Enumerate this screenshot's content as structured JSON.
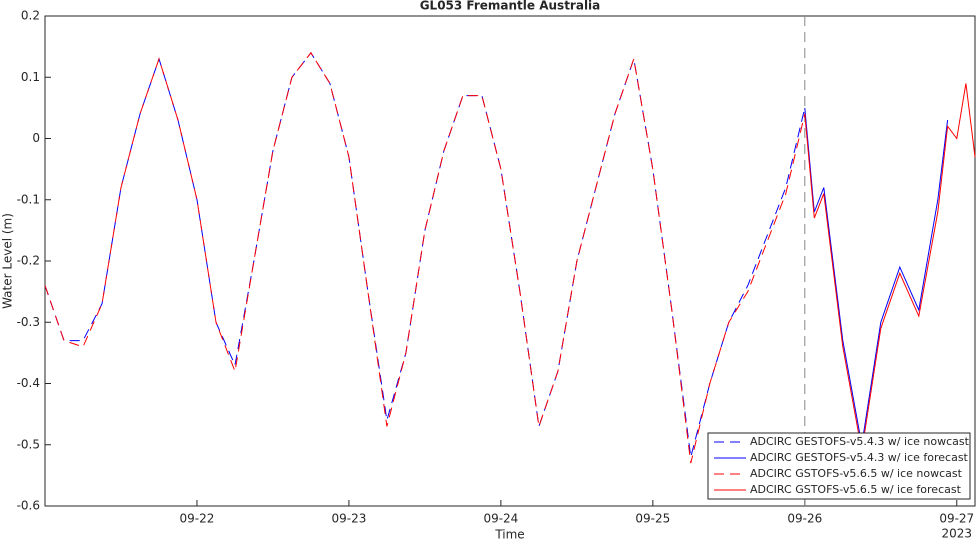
{
  "chart_data": {
    "type": "line",
    "title": "GL053 Fremantle Australia",
    "xlabel": "Time",
    "ylabel": "Water Level (m)",
    "x_year_label": "2023",
    "xlim": [
      0,
      6.12
    ],
    "ylim": [
      -0.6,
      0.2
    ],
    "xticks": [
      {
        "value": 1,
        "label": "09-22"
      },
      {
        "value": 2,
        "label": "09-23"
      },
      {
        "value": 3,
        "label": "09-24"
      },
      {
        "value": 4,
        "label": "09-25"
      },
      {
        "value": 5,
        "label": "09-26"
      },
      {
        "value": 6,
        "label": "09-27"
      }
    ],
    "yticks": [
      -0.6,
      -0.5,
      -0.4,
      -0.3,
      -0.2,
      -0.1,
      0,
      0.1,
      0.2
    ],
    "grid": false,
    "vline_x": 5,
    "legend_position": "lower right",
    "series": [
      {
        "name": "ADCIRC GESTOFS-v5.4.3 w/ ice nowcast",
        "color": "#0000ff",
        "dashed": true,
        "x": [
          0,
          0.125,
          0.25,
          0.375,
          0.5,
          0.625,
          0.75,
          0.875,
          1,
          1.125,
          1.25,
          1.375,
          1.5,
          1.625,
          1.75,
          1.875,
          2,
          2.125,
          2.25,
          2.375,
          2.5,
          2.625,
          2.75,
          2.875,
          3,
          3.125,
          3.25,
          3.375,
          3.5,
          3.625,
          3.75,
          3.875,
          4,
          4.125,
          4.25,
          4.375,
          4.5,
          4.625,
          4.75,
          4.875,
          5
        ],
        "values": [
          -0.24,
          -0.33,
          -0.33,
          -0.27,
          -0.08,
          0.04,
          0.13,
          0.03,
          -0.1,
          -0.3,
          -0.37,
          -0.2,
          -0.02,
          0.1,
          0.14,
          0.09,
          -0.03,
          -0.25,
          -0.46,
          -0.35,
          -0.15,
          -0.02,
          0.07,
          0.07,
          -0.05,
          -0.25,
          -0.47,
          -0.38,
          -0.2,
          -0.08,
          0.04,
          0.13,
          -0.05,
          -0.28,
          -0.52,
          -0.4,
          -0.3,
          -0.24,
          -0.16,
          -0.08,
          0.05
        ]
      },
      {
        "name": "ADCIRC GESTOFS-v5.4.3 w/ ice forecast",
        "color": "#0000ff",
        "dashed": false,
        "x": [
          5,
          5.0625,
          5.125,
          5.25,
          5.375,
          5.5,
          5.625,
          5.75,
          5.875,
          5.94
        ],
        "values": [
          0.05,
          -0.12,
          -0.08,
          -0.33,
          -0.5,
          -0.3,
          -0.21,
          -0.28,
          -0.1,
          0.03
        ]
      },
      {
        "name": "ADCIRC GSTOFS-v5.6.5 w/ ice nowcast",
        "color": "#ff0000",
        "dashed": true,
        "x": [
          0,
          0.125,
          0.25,
          0.375,
          0.5,
          0.625,
          0.75,
          0.875,
          1,
          1.125,
          1.25,
          1.375,
          1.5,
          1.625,
          1.75,
          1.875,
          2,
          2.125,
          2.25,
          2.375,
          2.5,
          2.625,
          2.75,
          2.875,
          3,
          3.125,
          3.25,
          3.375,
          3.5,
          3.625,
          3.75,
          3.875,
          4,
          4.125,
          4.25,
          4.375,
          4.5,
          4.625,
          4.75,
          4.875,
          5
        ],
        "values": [
          -0.24,
          -0.33,
          -0.34,
          -0.27,
          -0.08,
          0.04,
          0.13,
          0.03,
          -0.1,
          -0.3,
          -0.38,
          -0.2,
          -0.02,
          0.1,
          0.14,
          0.09,
          -0.03,
          -0.25,
          -0.47,
          -0.35,
          -0.15,
          -0.02,
          0.07,
          0.07,
          -0.05,
          -0.25,
          -0.47,
          -0.38,
          -0.2,
          -0.08,
          0.04,
          0.13,
          -0.05,
          -0.28,
          -0.53,
          -0.4,
          -0.3,
          -0.25,
          -0.17,
          -0.09,
          0.04
        ]
      },
      {
        "name": "ADCIRC GSTOFS-v5.6.5 w/ ice forecast",
        "color": "#ff0000",
        "dashed": false,
        "x": [
          5,
          5.0625,
          5.125,
          5.25,
          5.375,
          5.5,
          5.625,
          5.75,
          5.875,
          5.94,
          6,
          6.06,
          6.12
        ],
        "values": [
          0.04,
          -0.13,
          -0.09,
          -0.34,
          -0.51,
          -0.31,
          -0.22,
          -0.29,
          -0.12,
          0.02,
          0,
          0.09,
          -0.03
        ]
      }
    ]
  }
}
